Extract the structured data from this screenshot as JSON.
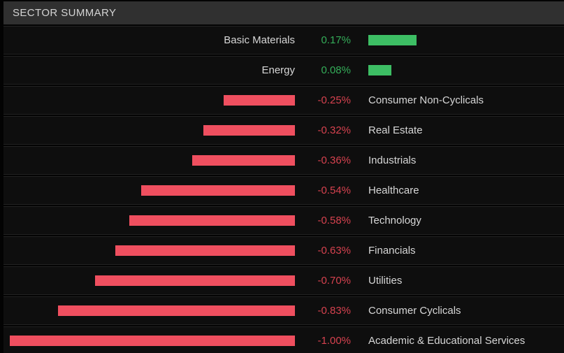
{
  "header": {
    "title": "SECTOR SUMMARY"
  },
  "colors": {
    "positive_bar": "#3dbe64",
    "positive_text": "#34ad59",
    "negative_bar": "#ef4f5f",
    "negative_text": "#d6424f",
    "header_bg": "#303030",
    "row_bg": "#0e0e0e",
    "label_text": "#d7d7d7"
  },
  "chart_data": {
    "type": "bar",
    "title": "SECTOR SUMMARY",
    "orientation": "horizontal",
    "unit": "%",
    "categories": [
      "Basic Materials",
      "Energy",
      "Consumer Non-Cyclicals",
      "Real Estate",
      "Industrials",
      "Healthcare",
      "Technology",
      "Financials",
      "Utilities",
      "Consumer Cyclicals",
      "Academic & Educational Services"
    ],
    "values": [
      0.17,
      0.08,
      -0.25,
      -0.32,
      -0.36,
      -0.54,
      -0.58,
      -0.63,
      -0.7,
      -0.83,
      -1.0
    ]
  },
  "sectors": [
    {
      "label": "Basic Materials",
      "value_text": "0.17%",
      "pct": 0.17,
      "direction": "positive"
    },
    {
      "label": "Energy",
      "value_text": "0.08%",
      "pct": 0.08,
      "direction": "positive"
    },
    {
      "label": "Consumer Non-Cyclicals",
      "value_text": "-0.25%",
      "pct": -0.25,
      "direction": "negative"
    },
    {
      "label": "Real Estate",
      "value_text": "-0.32%",
      "pct": -0.32,
      "direction": "negative"
    },
    {
      "label": "Industrials",
      "value_text": "-0.36%",
      "pct": -0.36,
      "direction": "negative"
    },
    {
      "label": "Healthcare",
      "value_text": "-0.54%",
      "pct": -0.54,
      "direction": "negative"
    },
    {
      "label": "Technology",
      "value_text": "-0.58%",
      "pct": -0.58,
      "direction": "negative"
    },
    {
      "label": "Financials",
      "value_text": "-0.63%",
      "pct": -0.63,
      "direction": "negative"
    },
    {
      "label": "Utilities",
      "value_text": "-0.70%",
      "pct": -0.7,
      "direction": "negative"
    },
    {
      "label": "Consumer Cyclicals",
      "value_text": "-0.83%",
      "pct": -0.83,
      "direction": "negative"
    },
    {
      "label": "Academic & Educational Services",
      "value_text": "-1.00%",
      "pct": -1.0,
      "direction": "negative"
    }
  ]
}
